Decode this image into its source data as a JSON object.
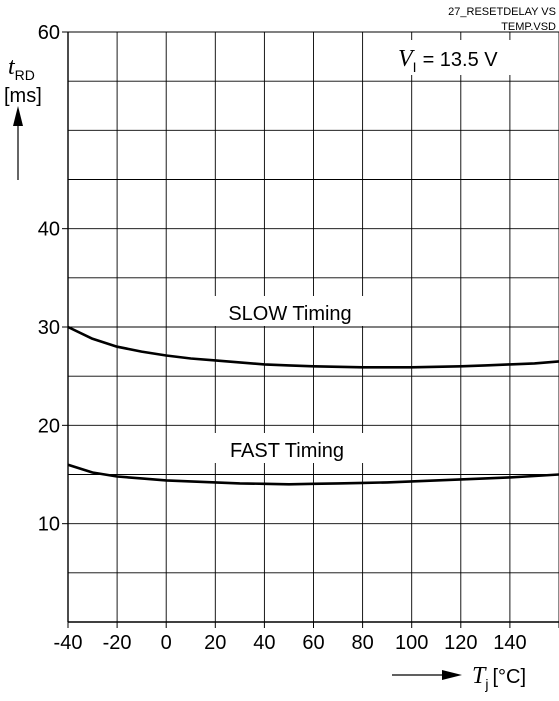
{
  "file_label": {
    "line1": "27_RESETDELAY VS",
    "line2": "TEMP.VSD"
  },
  "condition": {
    "symbol": "V",
    "subscript": "I",
    "text": "= 13.5 V"
  },
  "ylabel": {
    "symbol": "t",
    "subscript": "RD",
    "unit": "[ms]"
  },
  "xlabel": {
    "symbol": "T",
    "subscript": "j",
    "unit": "[°C]"
  },
  "chart_data": {
    "type": "line",
    "xlim": [
      -40,
      160
    ],
    "ylim": [
      0,
      60
    ],
    "grid": true,
    "x_ticks": [
      -40,
      -20,
      0,
      20,
      40,
      60,
      80,
      100,
      120,
      140
    ],
    "x_tick_labels": [
      "-40",
      "-20",
      "0",
      "20",
      "40",
      "60",
      "80",
      "100",
      "120",
      "140"
    ],
    "y_ticks": [
      10,
      20,
      30,
      40,
      60
    ],
    "y_tick_labels": [
      "10",
      "20",
      "30",
      "40",
      "60"
    ],
    "series": [
      {
        "name": "SLOW Timing",
        "x": [
          -40,
          -30,
          -20,
          -10,
          0,
          10,
          20,
          30,
          40,
          50,
          60,
          70,
          80,
          90,
          100,
          110,
          120,
          130,
          140,
          150,
          160
        ],
        "y": [
          30.0,
          28.8,
          28.0,
          27.5,
          27.1,
          26.8,
          26.6,
          26.4,
          26.2,
          26.1,
          26.0,
          25.95,
          25.9,
          25.9,
          25.9,
          25.95,
          26.0,
          26.1,
          26.2,
          26.3,
          26.5
        ]
      },
      {
        "name": "FAST Timing",
        "x": [
          -40,
          -30,
          -20,
          -10,
          0,
          10,
          20,
          30,
          40,
          50,
          60,
          70,
          80,
          90,
          100,
          110,
          120,
          130,
          140,
          150,
          160
        ],
        "y": [
          16.0,
          15.2,
          14.8,
          14.6,
          14.4,
          14.3,
          14.2,
          14.1,
          14.05,
          14.0,
          14.05,
          14.1,
          14.15,
          14.2,
          14.3,
          14.4,
          14.5,
          14.6,
          14.7,
          14.85,
          15.0
        ]
      }
    ]
  }
}
